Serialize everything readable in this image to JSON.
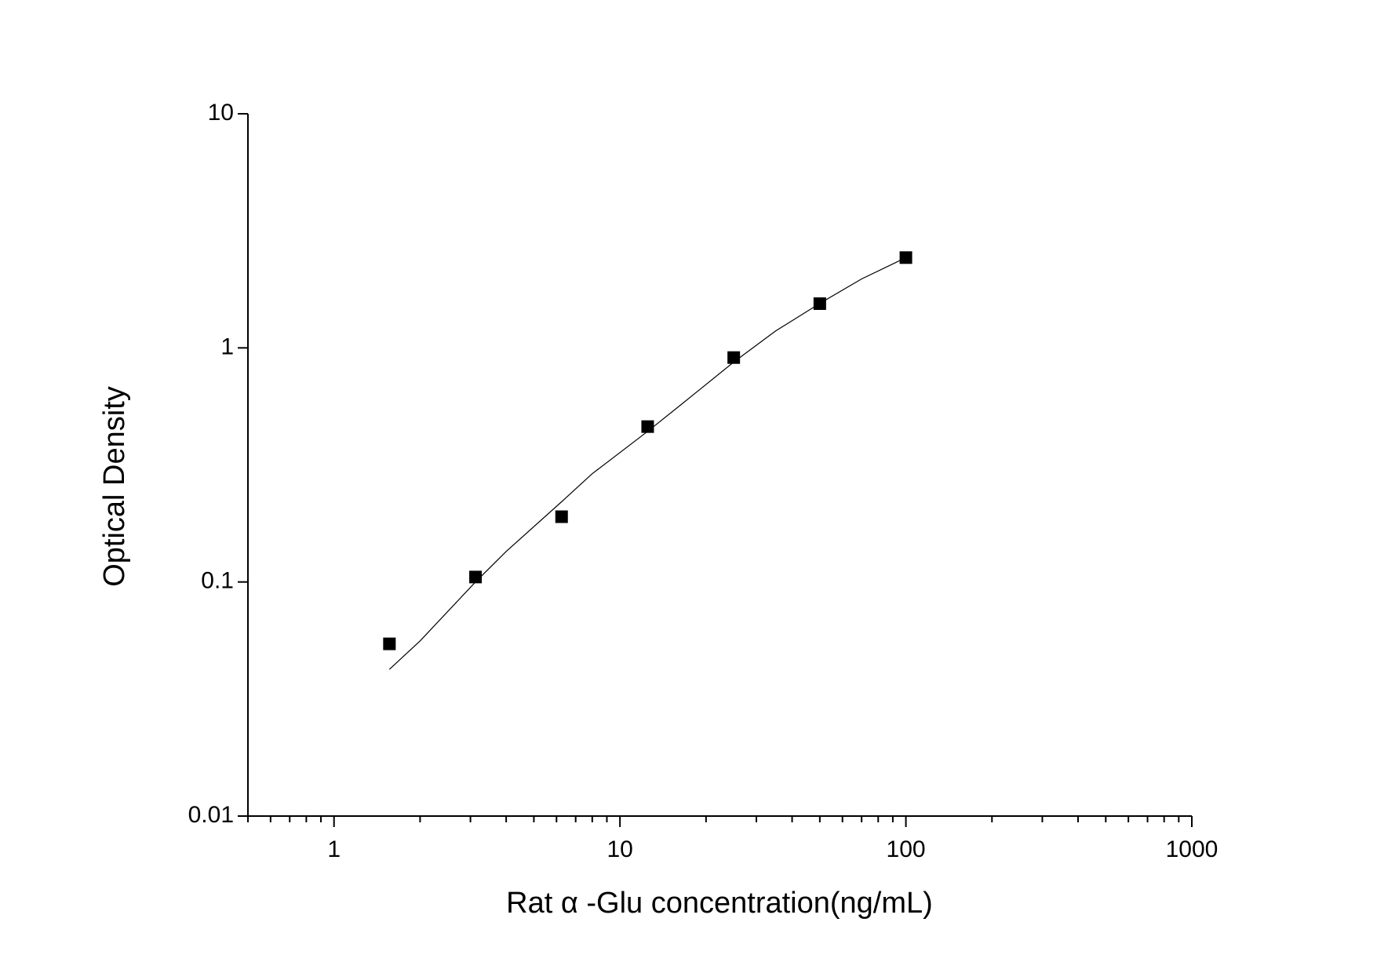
{
  "chart_data": {
    "type": "scatter",
    "x_label": "Rat α -Glu concentration(ng/mL)",
    "y_label": "Optical Density",
    "x": [
      1.5625,
      3.125,
      6.25,
      12.5,
      25,
      50,
      100
    ],
    "values": [
      0.0544,
      0.105,
      0.19,
      0.461,
      0.909,
      1.545,
      2.43
    ],
    "color": "#000000",
    "fit": {
      "x": [
        1.5625,
        2,
        3.125,
        4,
        6.25,
        8,
        12.5,
        16,
        25,
        35,
        50,
        70,
        100
      ],
      "y": [
        0.0423,
        0.056,
        0.1,
        0.135,
        0.22,
        0.29,
        0.44,
        0.56,
        0.87,
        1.18,
        1.55,
        1.97,
        2.43
      ]
    },
    "xlim": [
      0.5,
      1000
    ],
    "ylim": [
      0.01,
      10
    ],
    "xticks": [
      1,
      10,
      100,
      1000
    ],
    "x_minor_ticks": [
      0.5,
      0.6,
      0.7,
      0.8,
      0.9,
      2,
      3,
      4,
      5,
      6,
      7,
      8,
      9,
      20,
      30,
      40,
      50,
      60,
      70,
      80,
      90,
      200,
      300,
      400,
      500,
      600,
      700,
      800,
      900
    ],
    "yticks": [
      0.01,
      0.1,
      1,
      10
    ],
    "log_x": true,
    "log_y": true
  }
}
